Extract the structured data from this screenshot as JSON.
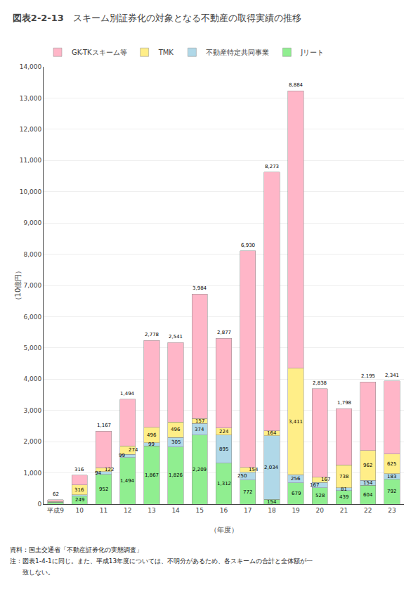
{
  "chart_data": {
    "type": "bar",
    "title": "図表2-2-13",
    "subtitle": "スキーム別証券化の対象となる不動産の取得実績の推移",
    "xlabel": "（年度）",
    "ylabel": "（10億円）",
    "categories": [
      "平成9",
      "10",
      "11",
      "12",
      "13",
      "14",
      "15",
      "16",
      "17",
      "18",
      "19",
      "20",
      "21",
      "22",
      "23"
    ],
    "series": [
      {
        "name": "Jリート",
        "color": "#90EE90",
        "values": [
          62,
          249,
          952,
          1494,
          1867,
          1826,
          2209,
          1312,
          772,
          154,
          679,
          528,
          439,
          604,
          792
        ],
        "value_labels": [
          null,
          "249",
          "952",
          "1,494",
          "1,867",
          "1,826",
          "2,209",
          "1,312",
          "772",
          "154",
          "679",
          "528",
          "439",
          "604",
          "792"
        ]
      },
      {
        "name": "不動産特定共同事業",
        "color": "#B0D8E8",
        "values": [
          4,
          44,
          94,
          99,
          99,
          305,
          374,
          895,
          250,
          2034,
          256,
          167,
          81,
          154,
          183
        ],
        "value_labels": [
          null,
          null,
          "94",
          "99",
          "99",
          "305",
          "374",
          "895",
          "250",
          "2,034",
          "256",
          "167",
          "81",
          "154",
          "183"
        ]
      },
      {
        "name": "TMK",
        "color": "#FFEE88",
        "values": [
          14,
          316,
          122,
          274,
          496,
          496,
          157,
          224,
          154,
          164,
          3411,
          167,
          738,
          962,
          625
        ],
        "value_labels": [
          null,
          "316",
          "122",
          "274",
          "496",
          "496",
          "157",
          "224",
          "154",
          "164",
          "3,411",
          "167",
          "738",
          "962",
          "625"
        ]
      },
      {
        "name": "GK-TKスキーム等",
        "color": "#FFB6C8",
        "values": [
          62,
          316,
          1167,
          1494,
          2778,
          2541,
          3984,
          2877,
          6930,
          8273,
          8884,
          2838,
          1798,
          2195,
          2341
        ],
        "value_labels": [
          "62",
          "316",
          "1,167",
          "1,494",
          "2,778",
          "2,541",
          "3,984",
          "2,877",
          "6,930",
          "8,273",
          "8,884",
          "2,838",
          "1,798",
          "2,195",
          "2,341"
        ]
      }
    ],
    "stacked": true,
    "data_labels": true,
    "ylim": [
      0,
      14000
    ],
    "yticks": [
      0,
      {
        "value": 1000,
        "label": "1,000"
      },
      {
        "value": 2000,
        "label": "2,000"
      },
      {
        "value": 3000,
        "label": "3,000"
      },
      {
        "value": 4000,
        "label": "4,000"
      },
      {
        "value": 5000,
        "label": "5,000"
      },
      {
        "value": 6000,
        "label": "6,000"
      },
      {
        "value": 7000,
        "label": "7,000"
      },
      {
        "value": 8000,
        "label": "8,000"
      },
      {
        "value": 9000,
        "label": "9,000"
      },
      {
        "value": 10000,
        "label": "10,000"
      },
      {
        "value": 11000,
        "label": "11,000"
      },
      {
        "value": 12000,
        "label": "12,000"
      },
      {
        "value": 13000,
        "label": "13,000"
      },
      {
        "value": 14000,
        "label": "14,000"
      }
    ],
    "grid": true,
    "legend": "top",
    "annotations": [
      "資料：国土交通省「不動産証券化の実態調査」",
      "注：図表1-4-1に同じ。また、平成13年度については、不明分があるため、各スキームの合計と全体額が一",
      "　　致しない。"
    ]
  }
}
